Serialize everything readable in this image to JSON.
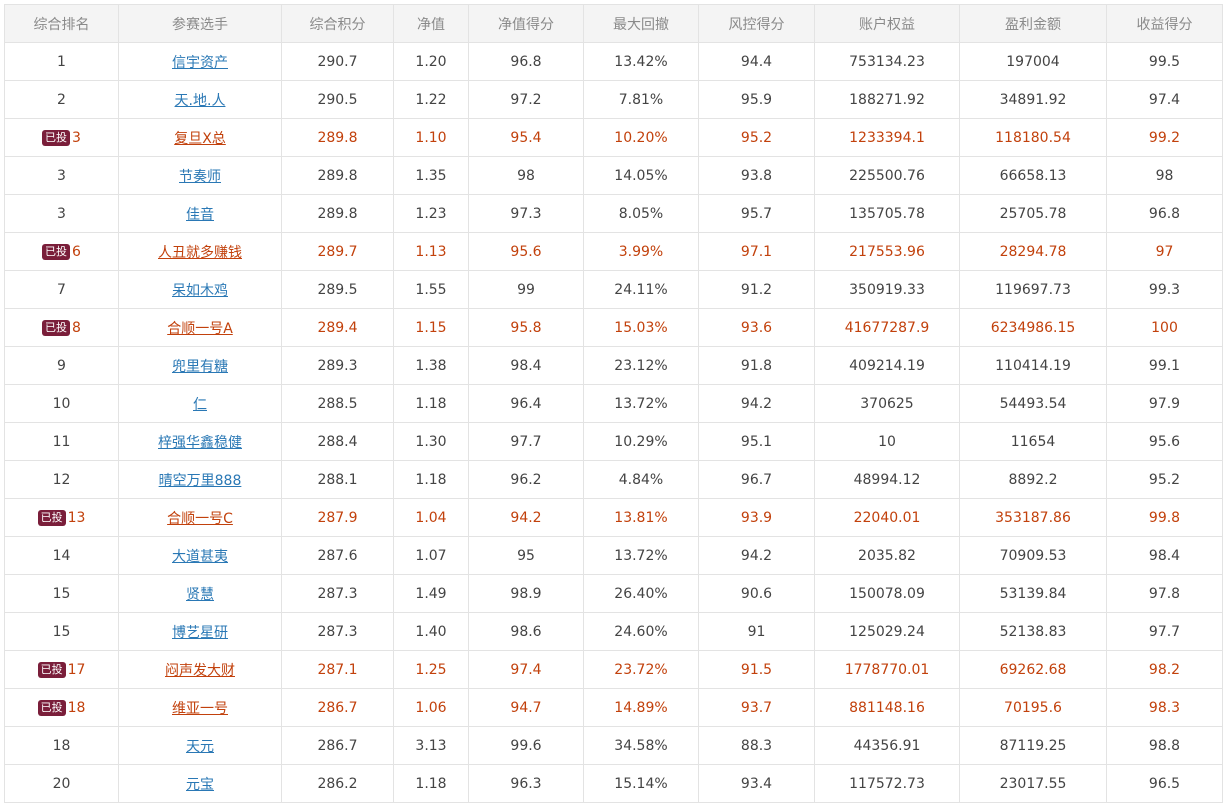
{
  "columns": [
    "综合排名",
    "参赛选手",
    "综合积分",
    "净值",
    "净值得分",
    "最大回撤",
    "风控得分",
    "账户权益",
    "盈利金额",
    "收益得分"
  ],
  "badge_label": "已投",
  "colors": {
    "invested_text": "#c2410c",
    "link": "#2a78b5",
    "badge_bg": "#7a1e3a"
  },
  "rows": [
    {
      "rank": "1",
      "invested": false,
      "player": "信宇资产",
      "score": "290.7",
      "nav": "1.20",
      "nav_score": "96.8",
      "max_dd": "13.42%",
      "risk_score": "94.4",
      "equity": "753134.23",
      "profit": "197004",
      "return_score": "99.5"
    },
    {
      "rank": "2",
      "invested": false,
      "player": "天.地.人",
      "score": "290.5",
      "nav": "1.22",
      "nav_score": "97.2",
      "max_dd": "7.81%",
      "risk_score": "95.9",
      "equity": "188271.92",
      "profit": "34891.92",
      "return_score": "97.4"
    },
    {
      "rank": "3",
      "invested": true,
      "player": "复旦X总",
      "score": "289.8",
      "nav": "1.10",
      "nav_score": "95.4",
      "max_dd": "10.20%",
      "risk_score": "95.2",
      "equity": "1233394.1",
      "profit": "118180.54",
      "return_score": "99.2"
    },
    {
      "rank": "3",
      "invested": false,
      "player": "节奏师",
      "score": "289.8",
      "nav": "1.35",
      "nav_score": "98",
      "max_dd": "14.05%",
      "risk_score": "93.8",
      "equity": "225500.76",
      "profit": "66658.13",
      "return_score": "98"
    },
    {
      "rank": "3",
      "invested": false,
      "player": "佳音",
      "score": "289.8",
      "nav": "1.23",
      "nav_score": "97.3",
      "max_dd": "8.05%",
      "risk_score": "95.7",
      "equity": "135705.78",
      "profit": "25705.78",
      "return_score": "96.8"
    },
    {
      "rank": "6",
      "invested": true,
      "player": "人丑就多赚钱",
      "score": "289.7",
      "nav": "1.13",
      "nav_score": "95.6",
      "max_dd": "3.99%",
      "risk_score": "97.1",
      "equity": "217553.96",
      "profit": "28294.78",
      "return_score": "97"
    },
    {
      "rank": "7",
      "invested": false,
      "player": "呆如木鸡",
      "score": "289.5",
      "nav": "1.55",
      "nav_score": "99",
      "max_dd": "24.11%",
      "risk_score": "91.2",
      "equity": "350919.33",
      "profit": "119697.73",
      "return_score": "99.3"
    },
    {
      "rank": "8",
      "invested": true,
      "player": "合顺一号A",
      "score": "289.4",
      "nav": "1.15",
      "nav_score": "95.8",
      "max_dd": "15.03%",
      "risk_score": "93.6",
      "equity": "41677287.9",
      "profit": "6234986.15",
      "return_score": "100"
    },
    {
      "rank": "9",
      "invested": false,
      "player": "兜里有糖",
      "score": "289.3",
      "nav": "1.38",
      "nav_score": "98.4",
      "max_dd": "23.12%",
      "risk_score": "91.8",
      "equity": "409214.19",
      "profit": "110414.19",
      "return_score": "99.1"
    },
    {
      "rank": "10",
      "invested": false,
      "player": "仁",
      "score": "288.5",
      "nav": "1.18",
      "nav_score": "96.4",
      "max_dd": "13.72%",
      "risk_score": "94.2",
      "equity": "370625",
      "profit": "54493.54",
      "return_score": "97.9"
    },
    {
      "rank": "11",
      "invested": false,
      "player": "梓强华鑫稳健",
      "score": "288.4",
      "nav": "1.30",
      "nav_score": "97.7",
      "max_dd": "10.29%",
      "risk_score": "95.1",
      "equity": "10",
      "profit": "11654",
      "return_score": "95.6"
    },
    {
      "rank": "12",
      "invested": false,
      "player": "晴空万里888",
      "score": "288.1",
      "nav": "1.18",
      "nav_score": "96.2",
      "max_dd": "4.84%",
      "risk_score": "96.7",
      "equity": "48994.12",
      "profit": "8892.2",
      "return_score": "95.2"
    },
    {
      "rank": "13",
      "invested": true,
      "player": "合顺一号C",
      "score": "287.9",
      "nav": "1.04",
      "nav_score": "94.2",
      "max_dd": "13.81%",
      "risk_score": "93.9",
      "equity": "22040.01",
      "profit": "353187.86",
      "return_score": "99.8"
    },
    {
      "rank": "14",
      "invested": false,
      "player": "大道甚夷",
      "score": "287.6",
      "nav": "1.07",
      "nav_score": "95",
      "max_dd": "13.72%",
      "risk_score": "94.2",
      "equity": "2035.82",
      "profit": "70909.53",
      "return_score": "98.4"
    },
    {
      "rank": "15",
      "invested": false,
      "player": "贤慧",
      "score": "287.3",
      "nav": "1.49",
      "nav_score": "98.9",
      "max_dd": "26.40%",
      "risk_score": "90.6",
      "equity": "150078.09",
      "profit": "53139.84",
      "return_score": "97.8"
    },
    {
      "rank": "15",
      "invested": false,
      "player": "博艺星研",
      "score": "287.3",
      "nav": "1.40",
      "nav_score": "98.6",
      "max_dd": "24.60%",
      "risk_score": "91",
      "equity": "125029.24",
      "profit": "52138.83",
      "return_score": "97.7"
    },
    {
      "rank": "17",
      "invested": true,
      "player": "闷声发大财",
      "score": "287.1",
      "nav": "1.25",
      "nav_score": "97.4",
      "max_dd": "23.72%",
      "risk_score": "91.5",
      "equity": "1778770.01",
      "profit": "69262.68",
      "return_score": "98.2"
    },
    {
      "rank": "18",
      "invested": true,
      "player": "维亚一号",
      "score": "286.7",
      "nav": "1.06",
      "nav_score": "94.7",
      "max_dd": "14.89%",
      "risk_score": "93.7",
      "equity": "881148.16",
      "profit": "70195.6",
      "return_score": "98.3"
    },
    {
      "rank": "18",
      "invested": false,
      "player": "天元",
      "score": "286.7",
      "nav": "3.13",
      "nav_score": "99.6",
      "max_dd": "34.58%",
      "risk_score": "88.3",
      "equity": "44356.91",
      "profit": "87119.25",
      "return_score": "98.8"
    },
    {
      "rank": "20",
      "invested": false,
      "player": "元宝",
      "score": "286.2",
      "nav": "1.18",
      "nav_score": "96.3",
      "max_dd": "15.14%",
      "risk_score": "93.4",
      "equity": "117572.73",
      "profit": "23017.55",
      "return_score": "96.5"
    }
  ]
}
